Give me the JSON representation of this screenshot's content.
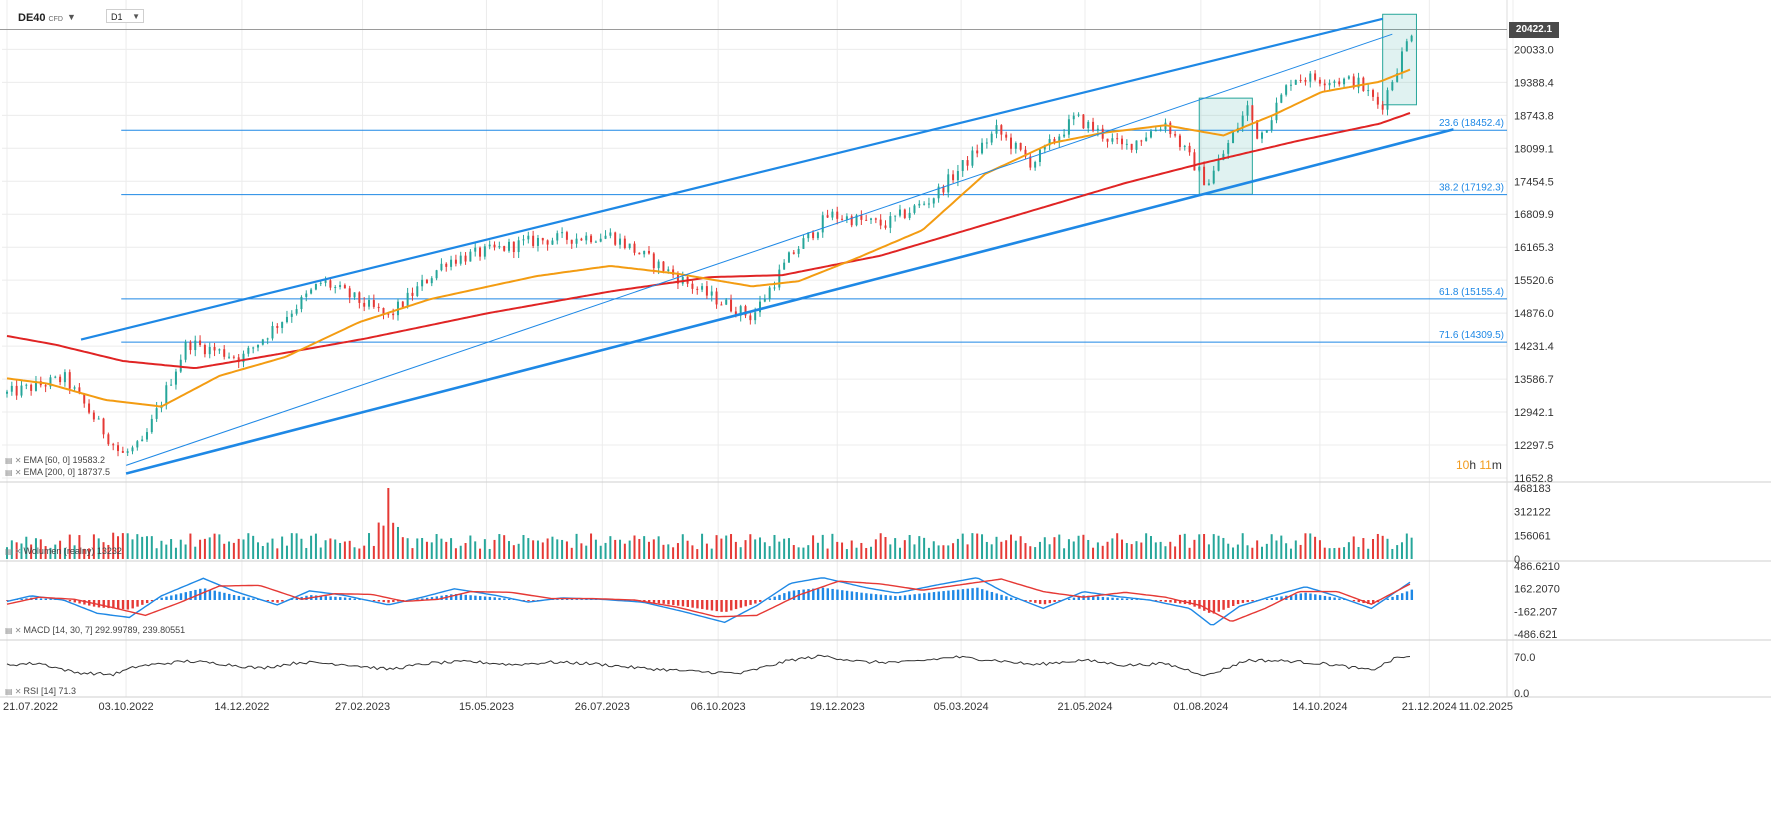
{
  "toolbar": {
    "symbol": "DE40",
    "symbol_type": "CFD",
    "timeframe": "D1"
  },
  "current_price": "20422.1",
  "countdown": {
    "hours": "10",
    "h_unit": "h",
    "minutes": "11",
    "m_unit": "m"
  },
  "colors": {
    "up": "#26a69a",
    "down": "#e53935",
    "ema60": "#f39c12",
    "ema200": "#e02424",
    "channel": "#1e88e5",
    "fib": "#1e88e5",
    "macd": "#1e88e5",
    "signal": "#e53935",
    "rsi": "#333333",
    "box": "#26a69a"
  },
  "chart_data": [
    {
      "type": "candlestick",
      "title": "DE40",
      "x_ticks": [
        "21.07.2022",
        "03.10.2022",
        "14.12.2022",
        "27.02.2023",
        "15.05.2023",
        "26.07.2023",
        "06.10.2023",
        "19.12.2023",
        "05.03.2024",
        "21.05.2024",
        "01.08.2024",
        "14.10.2024",
        "21.12.2024",
        "11.02.2025"
      ],
      "y_ticks": [
        11652.8,
        12297.5,
        12942.1,
        13586.7,
        14231.4,
        14876.0,
        15520.6,
        16165.3,
        16809.9,
        17454.5,
        18099.1,
        18743.8,
        19388.4,
        20033.0
      ],
      "y_tick_labels": [
        "11652.8",
        "12297.5",
        "12942.1",
        "13586.7",
        "14231.4",
        "14876.0",
        "15520.6",
        "16165.3",
        "16809.9",
        "17454.5",
        "18099.1",
        "18743.8",
        "19388.4",
        "20033.0"
      ],
      "ylim": [
        11652.8,
        20422.1
      ],
      "anchors": {
        "x": [
          "2022-07-21",
          "2022-08-26",
          "2022-09-30",
          "2022-10-13",
          "2022-11-10",
          "2022-12-14",
          "2023-02-02",
          "2023-03-15",
          "2023-04-20",
          "2023-06-15",
          "2023-07-31",
          "2023-09-25",
          "2023-10-27",
          "2023-11-20",
          "2023-12-14",
          "2024-01-17",
          "2024-02-15",
          "2024-03-27",
          "2024-04-18",
          "2024-05-15",
          "2024-06-14",
          "2024-07-10",
          "2024-08-05",
          "2024-08-30",
          "2024-09-06",
          "2024-09-27",
          "2024-11-06",
          "2024-11-21",
          "2024-12-10"
        ],
        "close": [
          13300,
          13600,
          12100,
          12300,
          14300,
          14000,
          15500,
          14800,
          15900,
          16300,
          16400,
          15300,
          14800,
          16000,
          16800,
          16600,
          17100,
          18450,
          17800,
          18700,
          18100,
          18600,
          17400,
          18900,
          18300,
          19500,
          19400,
          18900,
          20400
        ]
      },
      "ema60": {
        "x": [
          "2022-07-21",
          "2022-08-15",
          "2022-09-20",
          "2022-10-25",
          "2022-11-30",
          "2023-01-10",
          "2023-02-25",
          "2023-04-10",
          "2023-06-15",
          "2023-07-31",
          "2023-09-10",
          "2023-10-27",
          "2023-11-25",
          "2023-12-31",
          "2024-02-10",
          "2024-03-20",
          "2024-04-30",
          "2024-06-01",
          "2024-07-10",
          "2024-08-15",
          "2024-09-15",
          "2024-10-15",
          "2024-11-20",
          "2024-12-10"
        ],
        "y": [
          13600,
          13500,
          13180,
          13050,
          13650,
          14020,
          14700,
          15150,
          15600,
          15800,
          15650,
          15400,
          15500,
          15950,
          16500,
          17600,
          18200,
          18400,
          18550,
          18350,
          18750,
          19200,
          19400,
          19650
        ]
      },
      "ema200": {
        "x": [
          "2022-07-21",
          "2022-08-20",
          "2022-10-01",
          "2022-11-15",
          "2023-01-01",
          "2023-03-01",
          "2023-05-15",
          "2023-07-31",
          "2023-10-01",
          "2023-11-15",
          "2024-01-15",
          "2024-04-01",
          "2024-06-15",
          "2024-08-01",
          "2024-10-01",
          "2024-11-20",
          "2024-12-10"
        ],
        "y": [
          14430,
          14260,
          13940,
          13800,
          14050,
          14380,
          14870,
          15300,
          15580,
          15620,
          16000,
          16720,
          17420,
          17800,
          18250,
          18580,
          18800
        ]
      },
      "fibonacci_levels": [
        {
          "label": "23.6 (18452.4)",
          "value": 18452.4
        },
        {
          "label": "38.2 (17192.3)",
          "value": 17192.3
        },
        {
          "label": "61.8 (15155.4)",
          "value": 15155.4
        },
        {
          "label": "71.6 (14309.5)",
          "value": 14309.5
        }
      ],
      "fib_start": "2022-09-30",
      "trend_channel": {
        "upper": {
          "x": [
            "2022-09-05",
            "2024-11-22"
          ],
          "y": [
            14360,
            20630
          ]
        },
        "lower": {
          "x": [
            "2022-10-03",
            "2025-01-05"
          ],
          "y": [
            11740,
            18470
          ]
        },
        "mid": {
          "x": [
            "2022-10-03",
            "2024-11-28"
          ],
          "y": [
            11900,
            20330
          ]
        }
      },
      "highlight_boxes": [
        {
          "x": [
            "2024-07-31",
            "2024-09-02"
          ],
          "y": [
            17200,
            19080
          ]
        },
        {
          "x": [
            "2024-11-22",
            "2024-12-13"
          ],
          "y": [
            18950,
            20720
          ]
        }
      ],
      "legend": [
        {
          "label": "EMA [60, 0] 19583.2"
        },
        {
          "label": "EMA [200, 0] 18737.5"
        }
      ]
    },
    {
      "type": "bar",
      "title": "Wolumen (realny) 13232",
      "y_ticks": [
        0,
        156061,
        312122,
        468183
      ],
      "y_tick_labels": [
        "0",
        "156061",
        "312122",
        "468183"
      ],
      "ylim": [
        0,
        468183
      ],
      "typical_value": 145000,
      "spike": {
        "x": "2023-03-15",
        "value": 468183
      }
    },
    {
      "type": "line",
      "title": "MACD [14, 30, 7] 292.99789, 239.80551",
      "y_ticks": [
        -486.621,
        -162.207,
        162.207,
        486.621
      ],
      "y_tick_labels": [
        "-486.621",
        "-162.207",
        "162.2070",
        "486.6210"
      ],
      "ylim": [
        -486.621,
        486.621
      ],
      "macd": {
        "x": [
          "2022-07-21",
          "2022-08-05",
          "2022-08-25",
          "2022-09-15",
          "2022-10-05",
          "2022-10-25",
          "2022-11-20",
          "2022-12-10",
          "2023-01-05",
          "2023-01-25",
          "2023-02-15",
          "2023-03-15",
          "2023-04-05",
          "2023-04-25",
          "2023-05-20",
          "2023-06-10",
          "2023-07-01",
          "2023-07-25",
          "2023-08-20",
          "2023-09-15",
          "2023-10-10",
          "2023-10-30",
          "2023-11-20",
          "2023-12-10",
          "2024-01-05",
          "2024-01-25",
          "2024-02-20",
          "2024-03-15",
          "2024-04-05",
          "2024-04-25",
          "2024-05-20",
          "2024-06-10",
          "2024-06-30",
          "2024-07-25",
          "2024-08-08",
          "2024-08-25",
          "2024-09-15",
          "2024-10-05",
          "2024-10-25",
          "2024-11-15",
          "2024-12-10"
        ],
        "y": [
          -20,
          60,
          0,
          -190,
          -250,
          60,
          310,
          120,
          -70,
          130,
          70,
          -70,
          40,
          160,
          70,
          -30,
          30,
          10,
          -30,
          -170,
          -320,
          -80,
          240,
          320,
          180,
          100,
          220,
          320,
          60,
          -120,
          120,
          50,
          0,
          -120,
          -370,
          -90,
          60,
          190,
          50,
          -120,
          270
        ]
      },
      "signal": {
        "x": [
          "2022-07-21",
          "2022-08-10",
          "2022-09-01",
          "2022-09-25",
          "2022-10-15",
          "2022-11-05",
          "2022-11-30",
          "2022-12-25",
          "2023-01-20",
          "2023-02-10",
          "2023-03-05",
          "2023-03-25",
          "2023-04-15",
          "2023-05-05",
          "2023-05-30",
          "2023-06-25",
          "2023-07-20",
          "2023-08-15",
          "2023-09-10",
          "2023-10-05",
          "2023-10-30",
          "2023-11-25",
          "2023-12-20",
          "2024-01-15",
          "2024-02-10",
          "2024-03-05",
          "2024-03-30",
          "2024-04-25",
          "2024-05-20",
          "2024-06-15",
          "2024-07-10",
          "2024-08-01",
          "2024-08-20",
          "2024-09-10",
          "2024-10-01",
          "2024-10-25",
          "2024-11-15",
          "2024-12-10"
        ],
        "y": [
          -60,
          40,
          10,
          -110,
          -220,
          -40,
          200,
          210,
          10,
          90,
          80,
          -20,
          10,
          120,
          110,
          20,
          20,
          0,
          -100,
          -240,
          -220,
          70,
          270,
          230,
          140,
          220,
          300,
          120,
          40,
          110,
          40,
          -80,
          -310,
          -120,
          120,
          120,
          -60,
          240
        ]
      },
      "histogram_scale": 0.55
    },
    {
      "type": "line",
      "title": "RSI [14] 71.3",
      "y_ticks": [
        0.0,
        70.0
      ],
      "y_tick_labels": [
        "0.0",
        "70.0"
      ],
      "ylim": [
        0,
        100
      ],
      "rsi": {
        "x": [
          "2022-07-21",
          "2022-08-10",
          "2022-09-01",
          "2022-09-25",
          "2022-10-10",
          "2022-11-10",
          "2022-12-01",
          "2022-12-25",
          "2023-01-20",
          "2023-02-15",
          "2023-03-15",
          "2023-04-10",
          "2023-05-05",
          "2023-06-01",
          "2023-06-25",
          "2023-07-20",
          "2023-08-20",
          "2023-09-20",
          "2023-10-20",
          "2023-11-20",
          "2023-12-10",
          "2024-01-05",
          "2024-02-01",
          "2024-03-01",
          "2024-03-25",
          "2024-04-20",
          "2024-05-20",
          "2024-06-15",
          "2024-07-10",
          "2024-08-05",
          "2024-08-30",
          "2024-09-25",
          "2024-10-20",
          "2024-11-15",
          "2024-12-01",
          "2024-12-10"
        ],
        "y": [
          55,
          58,
          40,
          36,
          52,
          62,
          57,
          48,
          60,
          56,
          46,
          58,
          61,
          55,
          60,
          57,
          48,
          42,
          38,
          64,
          72,
          60,
          60,
          70,
          64,
          55,
          64,
          54,
          57,
          34,
          64,
          62,
          56,
          44,
          69,
          71.3
        ]
      }
    }
  ]
}
